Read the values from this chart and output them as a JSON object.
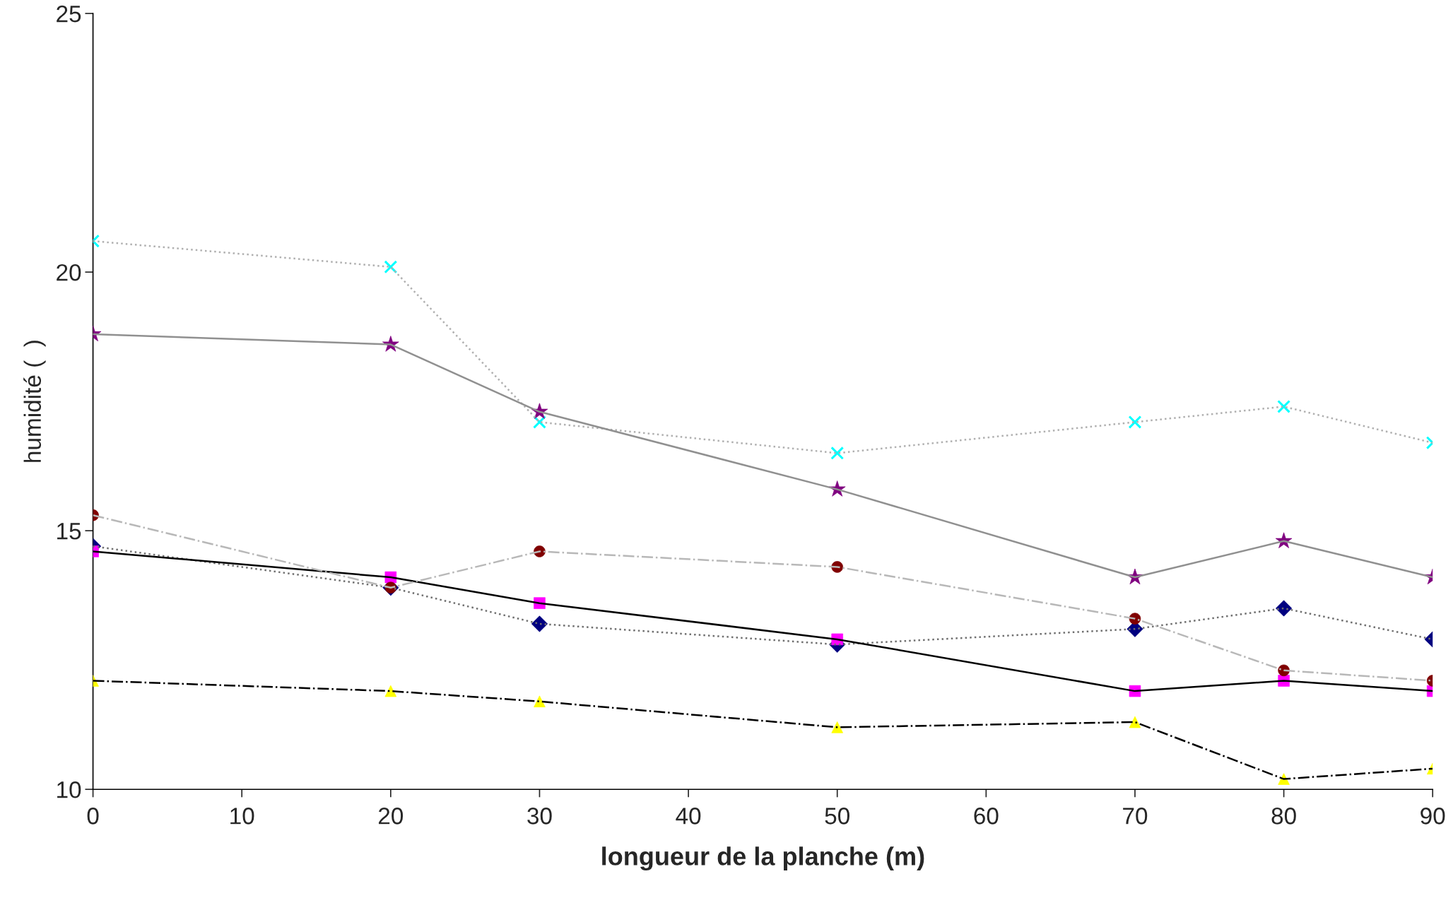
{
  "chart_data": {
    "type": "line",
    "xlabel": "longueur de la planche (m)",
    "ylabel": "humidité (  )",
    "x": [
      0,
      20,
      30,
      50,
      70,
      80,
      90
    ],
    "xlim": [
      0,
      90
    ],
    "xticks": [
      0,
      10,
      20,
      30,
      40,
      50,
      60,
      70,
      80,
      90
    ],
    "ylim": [
      10,
      25
    ],
    "yticks": [
      10,
      15,
      20,
      25
    ],
    "grid": false,
    "legend": false,
    "series": [
      {
        "values": [
          14.7,
          13.9,
          13.2,
          12.8,
          13.1,
          13.5,
          12.9
        ],
        "color": "#707070",
        "colors": [
          "#000080",
          "#000080",
          "#000080",
          "#000080",
          "#000080",
          "#000080",
          "#000080"
        ],
        "marker": "diamond",
        "line_style": "dotted"
      },
      {
        "values": [
          14.6,
          14.1,
          13.6,
          12.9,
          11.9,
          12.1,
          11.9
        ],
        "color": "#000000",
        "colors": [
          "#ff00ff",
          "#ff00ff",
          "#ff00ff",
          "#ff00ff",
          "#ff00ff",
          "#ff00ff",
          "#ff00ff"
        ],
        "marker": "square",
        "line_style": "solid"
      },
      {
        "values": [
          12.1,
          11.9,
          11.7,
          11.2,
          11.3,
          10.2,
          10.4
        ],
        "color": "#000000",
        "colors": [
          "#ffff00",
          "#ffff00",
          "#ffff00",
          "#ffff00",
          "#ffff00",
          "#ffff00",
          "#ffff00"
        ],
        "marker": "triangle",
        "line_style": "dashdot"
      },
      {
        "values": [
          20.6,
          20.1,
          17.1,
          16.5,
          17.1,
          17.4,
          16.7
        ],
        "color": "#b0b0b0",
        "colors": [
          "#00ffff",
          "#00ffff",
          "#00ffff",
          "#00ffff",
          "#00ffff",
          "#00ffff",
          "#00ffff"
        ],
        "marker": "cross",
        "line_style": "dotted"
      },
      {
        "values": [
          18.8,
          18.6,
          17.3,
          15.8,
          14.1,
          14.8,
          14.1
        ],
        "color": "#909090",
        "colors": [
          "#800080",
          "#800080",
          "#800080",
          "#800080",
          "#800080",
          "#800080",
          "#800080"
        ],
        "marker": "star",
        "line_style": "solid"
      },
      {
        "values": [
          15.3,
          13.9,
          14.6,
          14.3,
          13.3,
          12.3,
          12.1
        ],
        "color": "#b8b8b8",
        "colors": [
          "#800000",
          "#800000",
          "#800000",
          "#800000",
          "#800000",
          "#800000",
          "#800000"
        ],
        "marker": "circle",
        "line_style": "dashdot"
      }
    ]
  }
}
